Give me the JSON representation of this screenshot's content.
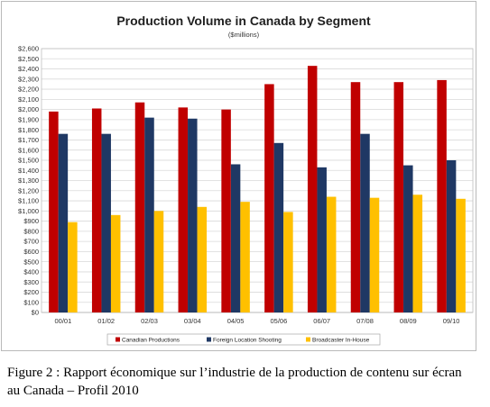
{
  "chart_data": {
    "type": "bar",
    "title": "Production Volume in Canada by Segment",
    "subtitle": "($millions)",
    "categories": [
      "00/01",
      "01/02",
      "02/03",
      "03/04",
      "04/05",
      "05/06",
      "06/07",
      "07/08",
      "08/09",
      "09/10"
    ],
    "series": [
      {
        "name": "Canadian Productions",
        "color": "#c00000",
        "values": [
          1980,
          2010,
          2070,
          2020,
          2000,
          2250,
          2430,
          2270,
          2270,
          2290
        ]
      },
      {
        "name": "Foreign Location Shooting",
        "color": "#1f3864",
        "values": [
          1760,
          1760,
          1920,
          1910,
          1460,
          1670,
          1430,
          1760,
          1450,
          1500
        ]
      },
      {
        "name": "Broadcaster In-House",
        "color": "#ffc000",
        "values": [
          890,
          960,
          1000,
          1040,
          1090,
          990,
          1140,
          1130,
          1160,
          1120
        ]
      }
    ],
    "ylim": [
      0,
      2600
    ],
    "ytick_step": 100,
    "ytick_labels": [
      "$0",
      "$100",
      "$200",
      "$300",
      "$400",
      "$500",
      "$600",
      "$700",
      "$800",
      "$900",
      "$1,000",
      "$1,100",
      "$1,200",
      "$1,300",
      "$1,400",
      "$1,500",
      "$1,600",
      "$1,700",
      "$1,800",
      "$1,900",
      "$2,000",
      "$2,100",
      "$2,200",
      "$2,300",
      "$2,400",
      "$2,500",
      "$2,600"
    ],
    "grid": true,
    "legend_position": "bottom"
  },
  "caption": "Figure 2 : Rapport économique sur l’industrie de la production de contenu sur écran au Canada – Profil 2010"
}
